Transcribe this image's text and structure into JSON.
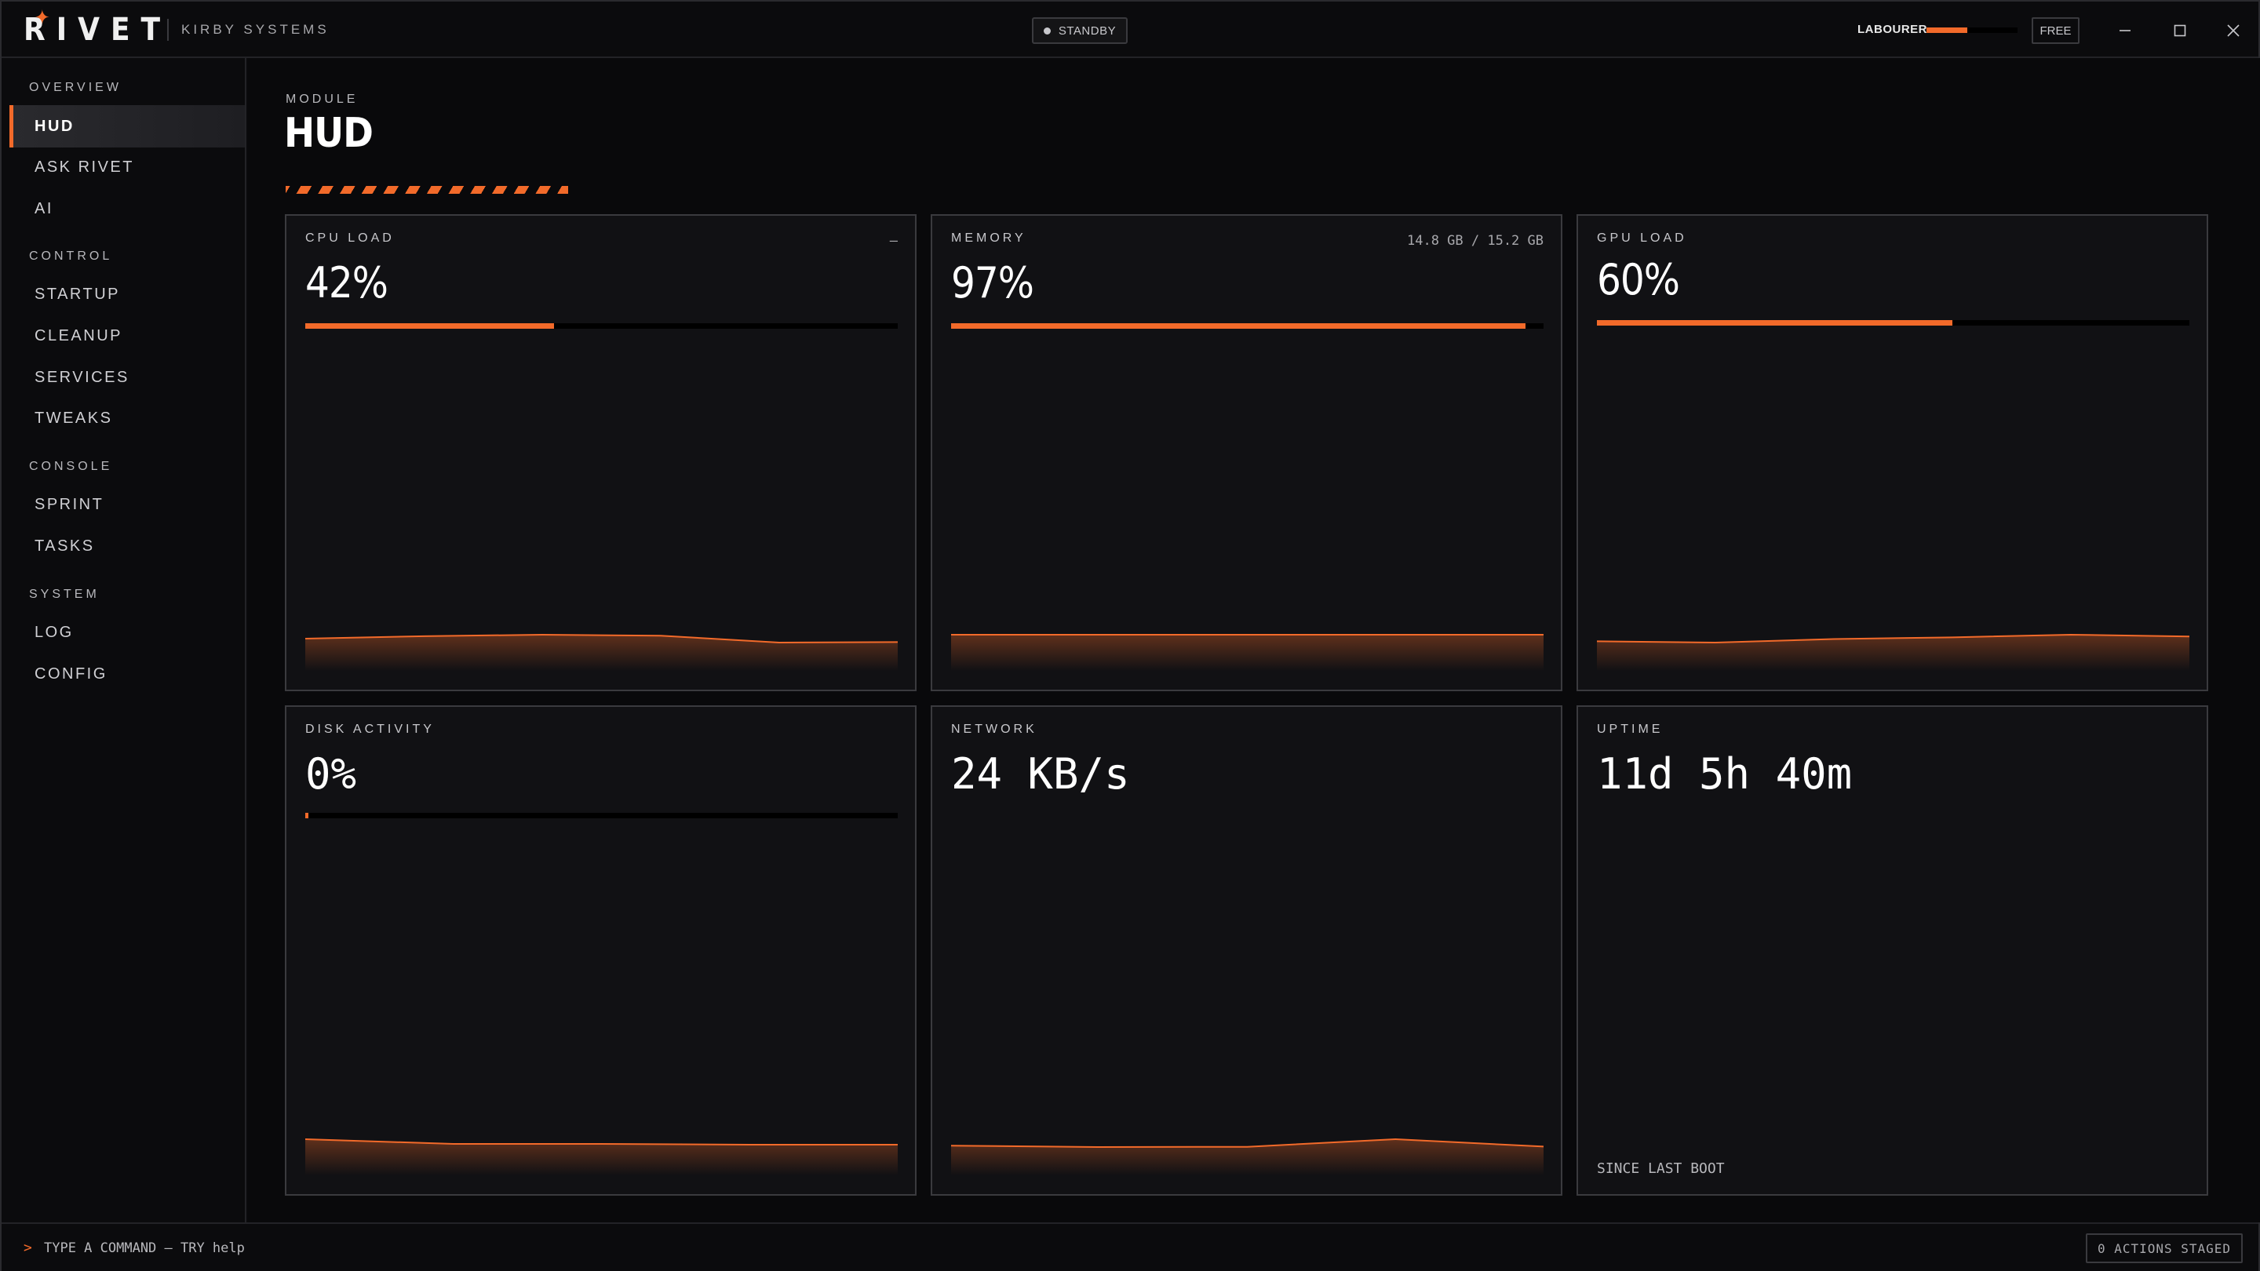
{
  "app": {
    "logo_text": "RIVET",
    "company": "KIRBY SYSTEMS",
    "status": "STANDBY",
    "user_role": "LABOURER",
    "user_progress": 0.45,
    "plan": "FREE",
    "accent_color": "#f26a2a"
  },
  "window_controls": {
    "minimize_icon": "minimize-icon",
    "maximize_icon": "maximize-icon",
    "close_icon": "close-icon"
  },
  "sidebar": {
    "groups": [
      {
        "label": "OVERVIEW",
        "items": [
          {
            "label": "HUD",
            "active": true
          },
          {
            "label": "ASK RIVET"
          },
          {
            "label": "AI"
          }
        ]
      },
      {
        "label": "CONTROL",
        "items": [
          {
            "label": "STARTUP"
          },
          {
            "label": "CLEANUP"
          },
          {
            "label": "SERVICES"
          },
          {
            "label": "TWEAKS"
          }
        ]
      },
      {
        "label": "CONSOLE",
        "items": [
          {
            "label": "SPRINT"
          },
          {
            "label": "TASKS"
          }
        ]
      },
      {
        "label": "SYSTEM",
        "items": [
          {
            "label": "LOG"
          },
          {
            "label": "CONFIG"
          }
        ]
      }
    ]
  },
  "main": {
    "module_label": "MODULE",
    "title": "HUD",
    "cards": {
      "cpu": {
        "title": "CPU LOAD",
        "meta": "—",
        "value": "42%",
        "level": 0.42,
        "history": [
          56,
          56.5,
          56.8,
          56.6,
          55.2,
          55.3
        ]
      },
      "memory": {
        "title": "MEMORY",
        "meta": "14.8 GB / 15.2 GB",
        "value": "97%",
        "level": 0.97,
        "history": [
          97,
          97,
          97,
          97,
          97,
          97
        ]
      },
      "gpu": {
        "title": "GPU LOAD",
        "meta": "",
        "value": "60%",
        "level": 0.6,
        "history": [
          58.5,
          58.2,
          59,
          59.4,
          60,
          59.6
        ]
      },
      "disk": {
        "title": "DISK ACTIVITY",
        "value": "0%",
        "level": 0.005,
        "history": [
          3.2,
          2.6,
          2.6,
          2.5,
          2.5
        ]
      },
      "network": {
        "title": "NETWORK",
        "value": "24 KB/s",
        "history": [
          24,
          23.4,
          23.5,
          26.8,
          23.6
        ]
      },
      "uptime": {
        "title": "UPTIME",
        "value": "11d 5h 40m",
        "footer": "SINCE LAST BOOT"
      }
    }
  },
  "command_bar": {
    "prompt": ">",
    "placeholder": "TYPE A COMMAND — TRY help",
    "staged": "0 ACTIONS STAGED"
  }
}
